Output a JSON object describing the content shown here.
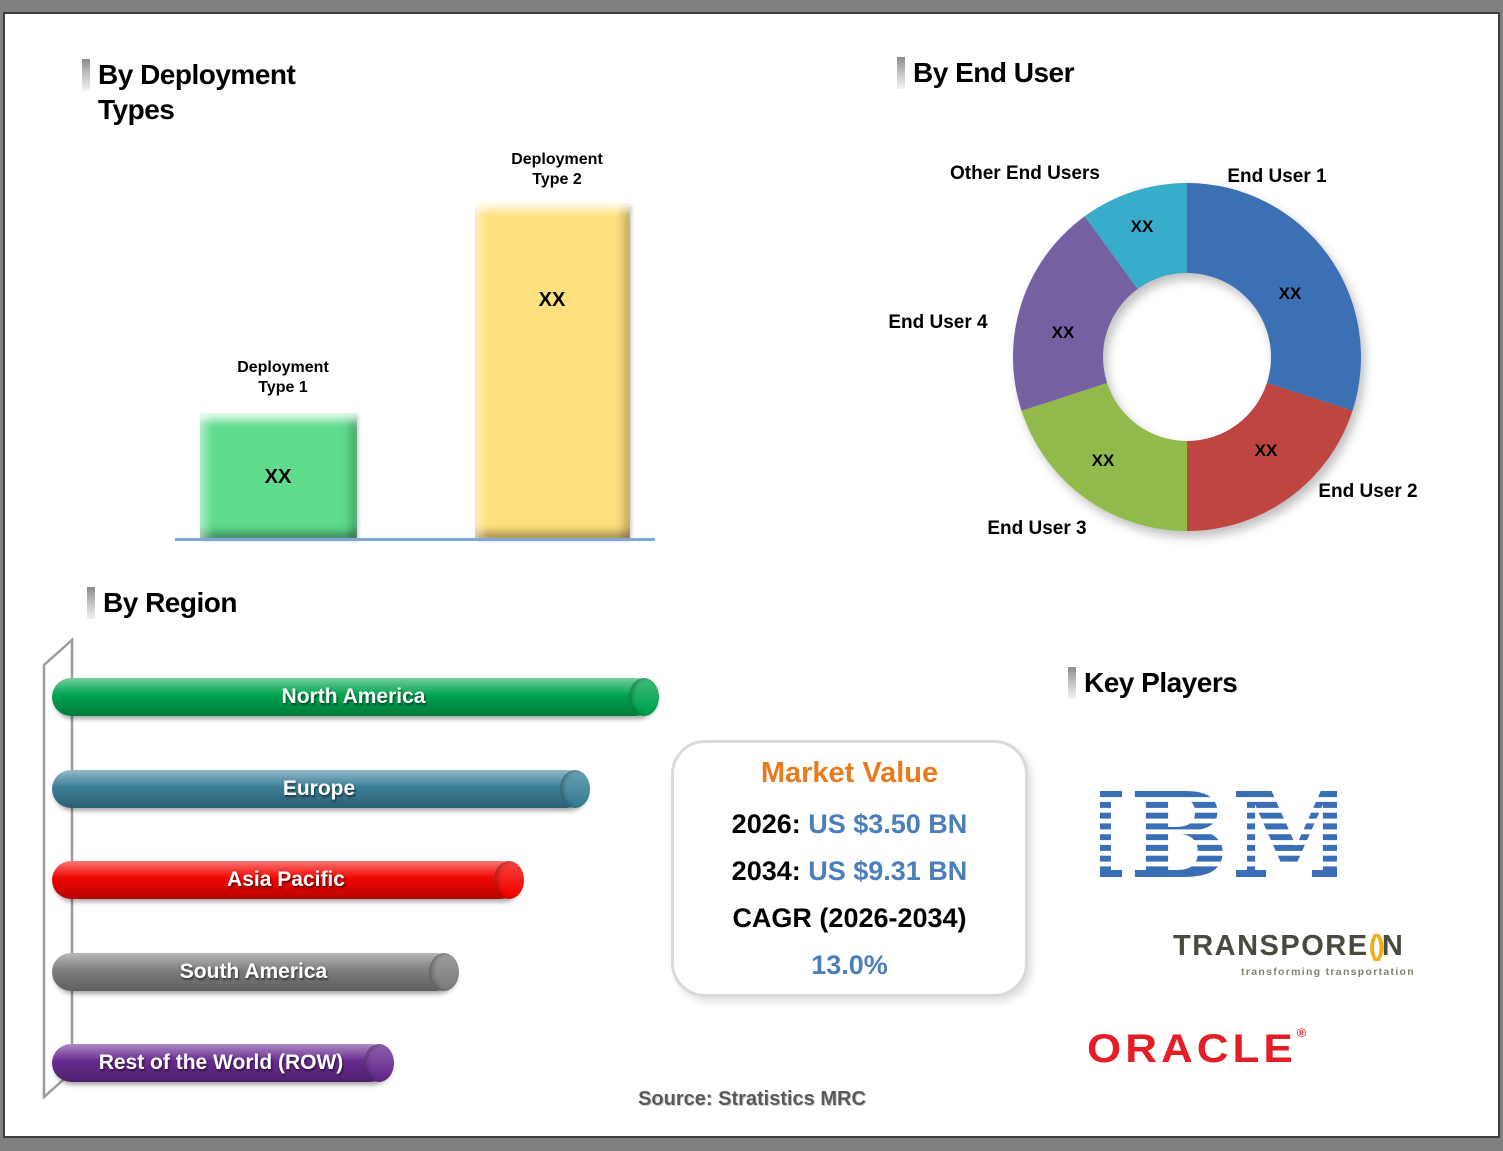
{
  "headings": {
    "deployment": "By Deployment Types",
    "end_user": "By End User",
    "region": "By Region",
    "key_players": "Key Players"
  },
  "chart_data": [
    {
      "type": "bar",
      "title": "By Deployment Types",
      "categories": [
        "Deployment Type 1",
        "Deployment Type 2"
      ],
      "value_labels": [
        "XX",
        "XX"
      ],
      "values_note": "numeric values masked as XX in source image",
      "relative_heights": [
        0.375,
        1.0
      ],
      "bar_colors": [
        "#5FDB8D",
        "#FFE07E"
      ],
      "grid": false
    },
    {
      "type": "donut",
      "title": "By End User",
      "legend_position": "around-chart",
      "segments": [
        {
          "label": "End User 1",
          "value_label": "XX",
          "percent_est": 30,
          "color": "#3C70B5"
        },
        {
          "label": "End User 2",
          "value_label": "XX",
          "percent_est": 20,
          "color": "#BF4540"
        },
        {
          "label": "End User 3",
          "value_label": "XX",
          "percent_est": 20,
          "color": "#92BA4A"
        },
        {
          "label": "End User 4",
          "value_label": "XX",
          "percent_est": 20,
          "color": "#7560A2"
        },
        {
          "label": "Other End Users",
          "value_label": "XX",
          "percent_est": 10,
          "color": "#38ADCB"
        }
      ]
    },
    {
      "type": "bar-horizontal",
      "title": "By Region",
      "bars": [
        {
          "label": "North America",
          "relative_width": 1.0,
          "color": "#00A44F"
        },
        {
          "label": "Europe",
          "relative_width": 0.885,
          "color": "#3A7F97"
        },
        {
          "label": "Asia Pacific",
          "relative_width": 0.776,
          "color": "#F20500"
        },
        {
          "label": "South America",
          "relative_width": 0.668,
          "color": "#7E7E7E"
        },
        {
          "label": "Rest of the World (ROW)",
          "relative_width": 0.561,
          "color": "#682B90"
        }
      ]
    }
  ],
  "market_value": {
    "title": "Market Value",
    "row_2026_prefix": "2026: ",
    "row_2026_value": "US $3.50 BN",
    "row_2034_prefix": "2034: ",
    "row_2034_value": "US $9.31 BN",
    "cagr_label": "CAGR (2026-2034)",
    "cagr_value": "13.0%"
  },
  "key_players": {
    "ibm_text": "IBM",
    "transporeon_part1": "TRANSPORE",
    "transporeon_o": "()",
    "transporeon_part2": "N",
    "transporeon_tagline": "transforming transportation",
    "oracle_text": "ORACLE",
    "oracle_reg": "®"
  },
  "source": "Source: Stratistics MRC",
  "colors": {
    "ibm-blue": "#3A6FB7",
    "transporeon-text": "#4A4A40",
    "transporeon-accent": "#F0AD18",
    "transporeon-tagline": "#83826F",
    "oracle-red": "#E41E26",
    "value-blue": "#4A7EBD",
    "market-orange": "#E87B1C",
    "source-gray": "#595959",
    "baseline-blue": "#7FA5D9",
    "frame-gray": "#808080",
    "frame-border": "#3F3F3F",
    "wall-gray": "#9B9B9B"
  }
}
